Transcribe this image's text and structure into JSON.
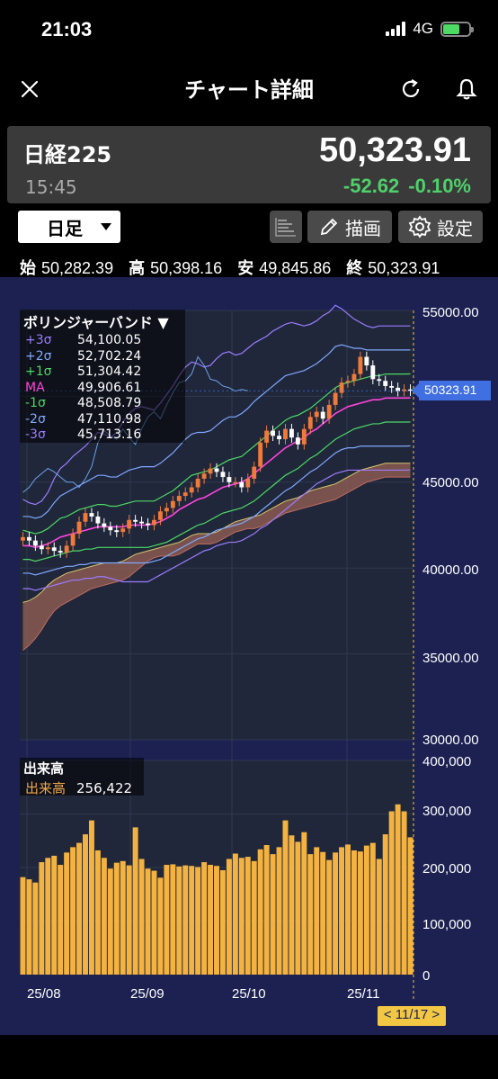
{
  "status": {
    "time": "21:03",
    "network": "4G"
  },
  "nav": {
    "title": "チャート詳細",
    "icons": [
      "close-icon",
      "refresh-icon",
      "bell-icon"
    ]
  },
  "quote": {
    "name": "日経225",
    "time": "15:45",
    "price": "50,323.91",
    "change": "-52.62",
    "change_pct": "-0.10%",
    "change_color": "#4fd06a"
  },
  "toolbar": {
    "period": "日足",
    "draw_label": "描画",
    "settings_label": "設定"
  },
  "ohlc": [
    {
      "k": "始",
      "v": "50,282.39"
    },
    {
      "k": "高",
      "v": "50,398.16"
    },
    {
      "k": "安",
      "v": "49,845.86"
    },
    {
      "k": "終",
      "v": "50,323.91"
    }
  ],
  "bollinger": {
    "title": "ボリンジャーバンド ▼",
    "rows": [
      {
        "label": "+3σ",
        "value": "54,100.05",
        "color": "#9b7cff"
      },
      {
        "label": "+2σ",
        "value": "52,702.24",
        "color": "#7fa8ff"
      },
      {
        "label": "+1σ",
        "value": "51,304.42",
        "color": "#4cd964"
      },
      {
        "label": "MA",
        "value": "49,906.61",
        "color": "#ff44dd"
      },
      {
        "label": "-1σ",
        "value": "48,508.79",
        "color": "#4cd964"
      },
      {
        "label": "-2σ",
        "value": "47,110.98",
        "color": "#7fa8ff"
      },
      {
        "label": "-3σ",
        "value": "45,713.16",
        "color": "#9b7cff"
      }
    ]
  },
  "volume_legend": {
    "title": "出来高",
    "label": "出来高",
    "value": "256,422"
  },
  "price_tag": "50323.91",
  "chart_data": [
    {
      "type": "candlestick",
      "y_ticks": [
        "55000.00",
        "45000.00",
        "40000.00",
        "35000.00",
        "30000.00"
      ],
      "ylim": [
        30000,
        55000
      ],
      "x_ticks": [
        "25/08",
        "25/09",
        "25/10",
        "25/11"
      ],
      "cursor_date": "< 11/17 >",
      "last_close": 50323.91,
      "closes": [
        41800,
        41600,
        41300,
        41100,
        41200,
        41000,
        40900,
        41300,
        42000,
        42700,
        43200,
        43000,
        42600,
        42400,
        42200,
        42100,
        42300,
        42800,
        42700,
        42600,
        42500,
        42800,
        43300,
        43500,
        43900,
        44200,
        44400,
        44700,
        45200,
        45500,
        45800,
        45600,
        45300,
        45000,
        45000,
        44700,
        45200,
        45900,
        47300,
        48000,
        47700,
        47500,
        48100,
        47600,
        47200,
        48100,
        48800,
        49100,
        48700,
        49500,
        50200,
        50800,
        50900,
        51300,
        52300,
        51800,
        51000,
        50900,
        50600,
        50500,
        50300,
        50400,
        50323.91
      ],
      "bands": {
        "plus3": [
          44000,
          43800,
          43700,
          43900,
          44400,
          45200,
          45800,
          46100,
          46500,
          46800,
          47100,
          47500,
          47900,
          47800,
          47600,
          47900,
          48500,
          49000,
          49300,
          49400,
          49300,
          49200,
          49600,
          50100,
          50600,
          51200,
          51700,
          52000,
          51900,
          51700,
          51800,
          52200,
          52500,
          52600,
          52400,
          52500,
          52800,
          53100,
          53300,
          53500,
          53800,
          54000,
          54200,
          54300,
          54200,
          54100,
          54200,
          54400,
          54700,
          54900,
          55300,
          55100,
          54800,
          54500,
          54300,
          54100,
          54000,
          54100,
          54100,
          54100,
          54100,
          54100,
          54100
        ],
        "plus2": [
          43000,
          43000,
          42900,
          43000,
          43300,
          43800,
          44200,
          44400,
          44600,
          44800,
          45000,
          45200,
          45400,
          45400,
          45300,
          45300,
          45500,
          45700,
          45800,
          45900,
          45900,
          45900,
          46100,
          46400,
          46700,
          47100,
          47500,
          47800,
          47900,
          47900,
          48000,
          48300,
          48600,
          48800,
          48800,
          49000,
          49300,
          49700,
          50000,
          50300,
          50600,
          50900,
          51200,
          51300,
          51400,
          51500,
          51700,
          51900,
          52200,
          52500,
          52900,
          53000,
          52900,
          52800,
          52800,
          52700,
          52700,
          52700,
          52700,
          52700,
          52700,
          52700,
          52702
        ],
        "plus1": [
          42200,
          42100,
          42000,
          42100,
          42300,
          42600,
          42900,
          43000,
          43200,
          43400,
          43500,
          43600,
          43700,
          43700,
          43600,
          43600,
          43700,
          43800,
          43900,
          43900,
          43900,
          43900,
          44100,
          44300,
          44500,
          44800,
          45100,
          45400,
          45500,
          45600,
          45700,
          45900,
          46100,
          46300,
          46400,
          46500,
          46800,
          47100,
          47400,
          47700,
          48000,
          48300,
          48600,
          48800,
          48900,
          49100,
          49300,
          49600,
          49900,
          50200,
          50500,
          50700,
          50800,
          50900,
          51000,
          51100,
          51200,
          51200,
          51300,
          51300,
          51300,
          51300,
          51304
        ],
        "ma": [
          41300,
          41300,
          41200,
          41300,
          41400,
          41600,
          41800,
          41900,
          42000,
          42100,
          42200,
          42300,
          42400,
          42400,
          42400,
          42400,
          42400,
          42500,
          42500,
          42500,
          42500,
          42600,
          42700,
          42900,
          43100,
          43400,
          43600,
          43800,
          44000,
          44100,
          44300,
          44500,
          44700,
          44800,
          44900,
          45000,
          45200,
          45500,
          45800,
          46100,
          46400,
          46700,
          47000,
          47200,
          47400,
          47600,
          47900,
          48100,
          48400,
          48700,
          49000,
          49200,
          49400,
          49500,
          49600,
          49700,
          49800,
          49800,
          49900,
          49900,
          49900,
          49900,
          49907
        ],
        "minus1": [
          40500,
          40500,
          40400,
          40500,
          40600,
          40700,
          40800,
          40900,
          41000,
          41000,
          41100,
          41100,
          41200,
          41200,
          41200,
          41200,
          41200,
          41200,
          41200,
          41200,
          41200,
          41300,
          41400,
          41500,
          41700,
          41900,
          42100,
          42300,
          42500,
          42600,
          42800,
          43000,
          43200,
          43300,
          43400,
          43500,
          43700,
          43900,
          44200,
          44500,
          44800,
          45100,
          45400,
          45600,
          45800,
          46100,
          46400,
          46600,
          46900,
          47200,
          47500,
          47700,
          47900,
          48100,
          48200,
          48300,
          48400,
          48400,
          48500,
          48500,
          48500,
          48500,
          48509
        ],
        "minus2": [
          39700,
          39700,
          39600,
          39700,
          39800,
          39900,
          40000,
          40100,
          40100,
          40200,
          40200,
          40300,
          40300,
          40300,
          40300,
          40300,
          40300,
          40300,
          40300,
          40300,
          40300,
          40400,
          40500,
          40700,
          40900,
          41100,
          41300,
          41500,
          41700,
          41800,
          42000,
          42200,
          42300,
          42400,
          42500,
          42600,
          42800,
          43000,
          43300,
          43600,
          43900,
          44200,
          44500,
          44700,
          45000,
          45300,
          45600,
          45800,
          46100,
          46400,
          46700,
          46900,
          47000,
          47000,
          47100,
          47100,
          47100,
          47100,
          47100,
          47100,
          47100,
          47100,
          47111
        ],
        "minus3": [
          38800,
          38800,
          38700,
          38800,
          38900,
          39000,
          39100,
          39200,
          39300,
          39300,
          39400,
          39400,
          39500,
          39500,
          39400,
          39300,
          39200,
          39200,
          39200,
          39200,
          39200,
          39400,
          39600,
          39800,
          40000,
          40200,
          40400,
          40600,
          40800,
          41000,
          41100,
          41300,
          41400,
          41500,
          41500,
          41600,
          41800,
          42000,
          42300,
          42500,
          42800,
          43100,
          43400,
          43700,
          44000,
          44300,
          44600,
          44900,
          45100,
          45300,
          45500,
          45600,
          45700,
          45700,
          45700,
          45700,
          45700,
          45700,
          45700,
          45700,
          45700,
          45700,
          45713
        ]
      },
      "cloud_upper": [
        38000,
        38100,
        38300,
        38600,
        39000,
        39300,
        39500,
        39700,
        39800,
        39900,
        40000,
        40100,
        40200,
        40300,
        40300,
        40300,
        40400,
        40600,
        40800,
        40900,
        41000,
        41100,
        41200,
        41300,
        41400,
        41500,
        41700,
        41900,
        42000,
        42000,
        42000,
        42100,
        42300,
        42500,
        42700,
        42800,
        42900,
        43000,
        43100,
        43300,
        43500,
        43700,
        43900,
        44000,
        44100,
        44300,
        44500,
        44600,
        44700,
        44800,
        44900,
        45100,
        45300,
        45500,
        45700,
        45800,
        45900,
        46000,
        46100,
        46100,
        46100,
        46100,
        46100
      ],
      "cloud_lower": [
        35200,
        35500,
        35900,
        36400,
        37000,
        37500,
        37800,
        38000,
        38200,
        38400,
        38600,
        38800,
        38900,
        39000,
        39100,
        39200,
        39300,
        39500,
        39800,
        40100,
        40400,
        40600,
        40700,
        40700,
        40700,
        40800,
        41000,
        41200,
        41400,
        41400,
        41400,
        41500,
        41700,
        41900,
        42100,
        42200,
        42300,
        42300,
        42400,
        42600,
        42800,
        43000,
        43200,
        43300,
        43400,
        43500,
        43600,
        43700,
        43800,
        43900,
        44000,
        44200,
        44400,
        44600,
        44800,
        45000,
        45100,
        45200,
        45300,
        45300,
        45300,
        45300,
        45300
      ]
    },
    {
      "type": "bar",
      "name": "出来高",
      "y_ticks": [
        "400,000",
        "300,000",
        "200,000",
        "100,000",
        "0"
      ],
      "ylim": [
        0,
        400000
      ],
      "values": [
        182000,
        178000,
        172000,
        210000,
        218000,
        222000,
        205000,
        228000,
        238000,
        246000,
        262000,
        288000,
        232000,
        218000,
        198000,
        209000,
        212000,
        204000,
        275000,
        216000,
        198000,
        194000,
        181000,
        205000,
        206000,
        202000,
        204000,
        203000,
        201000,
        210000,
        205000,
        203000,
        195000,
        216000,
        226000,
        218000,
        220000,
        212000,
        234000,
        242000,
        225000,
        238000,
        288000,
        260000,
        248000,
        266000,
        225000,
        238000,
        229000,
        214000,
        228000,
        238000,
        243000,
        232000,
        230000,
        241000,
        246000,
        216000,
        262000,
        305000,
        318000,
        305000,
        256422
      ]
    }
  ]
}
